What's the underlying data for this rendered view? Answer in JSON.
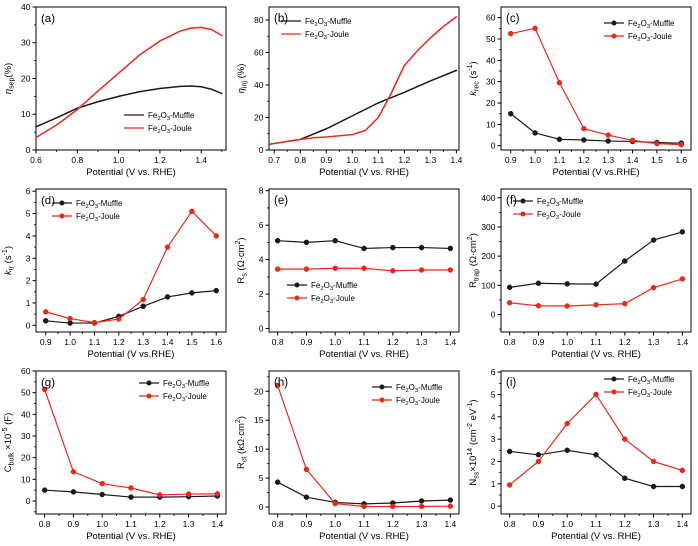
{
  "figure": {
    "background": "#ffffff",
    "rows": 3,
    "cols": 3
  },
  "colors": {
    "muffle": "#1a1a1a",
    "joule": "#e8291c",
    "axis": "#000000"
  },
  "rich_names": {
    "Fe2O3-Muffle": [
      [
        "Fe",
        ""
      ],
      [
        "2",
        "sub"
      ],
      [
        "O",
        ""
      ],
      [
        "3",
        "sub"
      ],
      [
        "-Muffle",
        ""
      ]
    ],
    "Fe2O3-Joule": [
      [
        "Fe",
        ""
      ],
      [
        "2",
        "sub"
      ],
      [
        "O",
        ""
      ],
      [
        "3",
        "sub"
      ],
      [
        "-Joule",
        ""
      ]
    ]
  },
  "chart_data": [
    {
      "panel": "(a)",
      "type": "line",
      "xlabel": "Potential (V vs. RHE)",
      "ylabel": "n_sep(%)",
      "ylabel_segments": [
        [
          "η",
          "i"
        ],
        [
          "sep",
          "sub"
        ],
        [
          "(%)",
          ""
        ]
      ],
      "xlim": [
        0.6,
        1.52
      ],
      "ylim": [
        0,
        40
      ],
      "xticks": [
        0.6,
        0.8,
        1.0,
        1.2,
        1.4
      ],
      "xtick_labels": [
        "0.6",
        "0.8",
        "1.0",
        "1.2",
        "1.4"
      ],
      "yticks": [
        0,
        10,
        20,
        30,
        40
      ],
      "ytick_labels": [
        "0",
        "10",
        "20",
        "30",
        "40"
      ],
      "legend": {
        "pos": "bottom-right",
        "xy": [
          88,
          104
        ],
        "marker": false
      },
      "series": [
        {
          "name": "Fe2O3-Muffle",
          "color_key": "muffle",
          "marker": false,
          "x": [
            0.6,
            0.7,
            0.8,
            0.9,
            1.0,
            1.1,
            1.2,
            1.3,
            1.35,
            1.4,
            1.45,
            1.5
          ],
          "y": [
            6.5,
            9.0,
            11.7,
            13.5,
            15.0,
            16.3,
            17.2,
            17.8,
            17.9,
            17.7,
            17.0,
            15.8
          ]
        },
        {
          "name": "Fe2O3-Joule",
          "color_key": "joule",
          "marker": false,
          "x": [
            0.6,
            0.7,
            0.8,
            0.9,
            1.0,
            1.1,
            1.2,
            1.3,
            1.35,
            1.4,
            1.45,
            1.5
          ],
          "y": [
            3.5,
            7.0,
            11.3,
            16.5,
            21.5,
            26.5,
            30.5,
            33.3,
            34.1,
            34.3,
            33.7,
            32.0
          ]
        }
      ]
    },
    {
      "panel": "(b)",
      "type": "line",
      "xlabel": "Potential (V vs. RHE)",
      "ylabel": "n_inj (%)",
      "ylabel_segments": [
        [
          "η",
          "i"
        ],
        [
          "inj",
          "sub"
        ],
        [
          " (%)",
          ""
        ]
      ],
      "xlim": [
        0.68,
        1.41
      ],
      "ylim": [
        0,
        88
      ],
      "xticks": [
        0.7,
        0.8,
        0.9,
        1.0,
        1.1,
        1.2,
        1.3,
        1.4
      ],
      "xtick_labels": [
        "0.7",
        "0.8",
        "0.9",
        "1.0",
        "1.1",
        "1.2",
        "1.3",
        "1.4"
      ],
      "yticks": [
        0,
        20,
        40,
        60,
        80
      ],
      "ytick_labels": [
        "0",
        "20",
        "40",
        "60",
        "80"
      ],
      "legend": {
        "pos": "top-left",
        "xy": [
          12,
          10
        ],
        "marker": false
      },
      "series": [
        {
          "name": "Fe2O3-Muffle",
          "color_key": "muffle",
          "marker": false,
          "x": [
            0.68,
            0.8,
            0.9,
            1.0,
            1.1,
            1.2,
            1.3,
            1.4
          ],
          "y": [
            3.5,
            6.5,
            13,
            21,
            29,
            35.5,
            42.5,
            49
          ]
        },
        {
          "name": "Fe2O3-Joule",
          "color_key": "joule",
          "marker": false,
          "x": [
            0.68,
            0.8,
            0.85,
            0.9,
            1.0,
            1.05,
            1.1,
            1.15,
            1.2,
            1.25,
            1.3,
            1.35,
            1.4
          ],
          "y": [
            3.5,
            6.5,
            7.5,
            8,
            9.5,
            12,
            20,
            35,
            52,
            61,
            69,
            76,
            82
          ]
        }
      ]
    },
    {
      "panel": "(c)",
      "type": "scatter-line",
      "xlabel": "Potential (V vs.RHE)",
      "ylabel": "k_rec (s-1)",
      "ylabel_segments": [
        [
          "k",
          "i"
        ],
        [
          "rec",
          "sub"
        ],
        [
          " (s",
          ""
        ],
        [
          "-1",
          "sup"
        ],
        [
          ")",
          ""
        ]
      ],
      "xlim": [
        0.86,
        1.64
      ],
      "ylim": [
        -2,
        65
      ],
      "xticks": [
        0.9,
        1.0,
        1.1,
        1.2,
        1.3,
        1.4,
        1.5,
        1.6
      ],
      "xtick_labels": [
        "0.9",
        "1.0",
        "1.1",
        "1.2",
        "1.3",
        "1.4",
        "1.5",
        "1.6"
      ],
      "yticks": [
        0,
        10,
        20,
        30,
        40,
        50,
        60
      ],
      "ytick_labels": [
        "0",
        "10",
        "20",
        "30",
        "40",
        "50",
        "60"
      ],
      "legend": {
        "pos": "top-right",
        "xy": [
          103,
          12
        ],
        "marker": true
      },
      "series": [
        {
          "name": "Fe2O3-Muffle",
          "color_key": "muffle",
          "marker": true,
          "x": [
            0.9,
            1.0,
            1.1,
            1.2,
            1.3,
            1.4,
            1.5,
            1.6
          ],
          "y": [
            15,
            6,
            3,
            2.7,
            2.2,
            2.0,
            1.5,
            1.2
          ]
        },
        {
          "name": "Fe2O3-Joule",
          "color_key": "joule",
          "marker": true,
          "x": [
            0.9,
            1.0,
            1.1,
            1.2,
            1.3,
            1.4,
            1.5,
            1.6
          ],
          "y": [
            52.5,
            55,
            29.5,
            8,
            5,
            2.5,
            1.0,
            0.5
          ]
        }
      ]
    },
    {
      "panel": "(d)",
      "type": "scatter-line",
      "xlabel": "Potential (V vs.RHE)",
      "ylabel": "k_tr (s-1)",
      "ylabel_segments": [
        [
          "k",
          "i"
        ],
        [
          "tr",
          "sub"
        ],
        [
          " (s",
          ""
        ],
        [
          "-1",
          "sup"
        ],
        [
          ")",
          ""
        ]
      ],
      "xlim": [
        0.86,
        1.64
      ],
      "ylim": [
        -0.3,
        6.1
      ],
      "xticks": [
        0.9,
        1.0,
        1.1,
        1.2,
        1.3,
        1.4,
        1.5,
        1.6
      ],
      "xtick_labels": [
        "0.9",
        "1.0",
        "1.1",
        "1.2",
        "1.3",
        "1.4",
        "1.5",
        "1.6"
      ],
      "yticks": [
        0,
        1,
        2,
        3,
        4,
        5,
        6
      ],
      "ytick_labels": [
        "0",
        "1",
        "2",
        "3",
        "4",
        "5",
        "6"
      ],
      "legend": {
        "pos": "top-left",
        "xy": [
          16,
          10
        ],
        "marker": true
      },
      "series": [
        {
          "name": "Fe2O3-Muffle",
          "color_key": "muffle",
          "marker": true,
          "x": [
            0.9,
            1.0,
            1.1,
            1.2,
            1.3,
            1.4,
            1.5,
            1.6
          ],
          "y": [
            0.2,
            0.1,
            0.1,
            0.4,
            0.85,
            1.27,
            1.45,
            1.55
          ]
        },
        {
          "name": "Fe2O3-Joule",
          "color_key": "joule",
          "marker": true,
          "x": [
            0.9,
            1.0,
            1.1,
            1.2,
            1.3,
            1.4,
            1.5,
            1.6
          ],
          "y": [
            0.6,
            0.3,
            0.12,
            0.28,
            1.15,
            3.5,
            5.1,
            4.0
          ]
        }
      ]
    },
    {
      "panel": "(e)",
      "type": "scatter-line",
      "xlabel": "Potential (V vs. RHE)",
      "ylabel": "Rs (Ohm cm2)",
      "ylabel_segments": [
        [
          "R",
          ""
        ],
        [
          "s",
          "sub"
        ],
        [
          " (Ω·cm",
          ""
        ],
        [
          "2",
          "sup"
        ],
        [
          ")",
          ""
        ]
      ],
      "xlim": [
        0.77,
        1.43
      ],
      "ylim": [
        -0.2,
        8.1
      ],
      "xticks": [
        0.8,
        0.9,
        1.0,
        1.1,
        1.2,
        1.3,
        1.4
      ],
      "xtick_labels": [
        "0.8",
        "0.9",
        "1.0",
        "1.1",
        "1.2",
        "1.3",
        "1.4"
      ],
      "yticks": [
        0,
        2,
        4,
        6,
        8
      ],
      "ytick_labels": [
        "0",
        "2",
        "4",
        "6",
        "8"
      ],
      "legend": {
        "pos": "bottom-left",
        "xy": [
          18,
          92
        ],
        "marker": true
      },
      "series": [
        {
          "name": "Fe2O3-Muffle",
          "color_key": "muffle",
          "marker": true,
          "x": [
            0.8,
            0.9,
            1.0,
            1.1,
            1.2,
            1.3,
            1.4
          ],
          "y": [
            5.1,
            5.0,
            5.1,
            4.65,
            4.7,
            4.7,
            4.65
          ]
        },
        {
          "name": "Fe2O3-Joule",
          "color_key": "joule",
          "marker": true,
          "x": [
            0.8,
            0.9,
            1.0,
            1.1,
            1.2,
            1.3,
            1.4
          ],
          "y": [
            3.45,
            3.45,
            3.5,
            3.5,
            3.35,
            3.4,
            3.4
          ]
        }
      ]
    },
    {
      "panel": "(f)",
      "type": "scatter-line",
      "xlabel": "Potential (V vs. RHE)",
      "ylabel": "Rtrap (Ohm cm2)",
      "ylabel_segments": [
        [
          "R",
          ""
        ],
        [
          "trap",
          "sub"
        ],
        [
          " (Ω·cm",
          ""
        ],
        [
          "2",
          "sup"
        ],
        [
          ")",
          ""
        ]
      ],
      "xlim": [
        0.77,
        1.43
      ],
      "ylim": [
        -60,
        430
      ],
      "xticks": [
        0.8,
        0.9,
        1.0,
        1.1,
        1.2,
        1.3,
        1.4
      ],
      "xtick_labels": [
        "0.8",
        "0.9",
        "1.0",
        "1.1",
        "1.2",
        "1.3",
        "1.4"
      ],
      "yticks": [
        0,
        100,
        200,
        300,
        400
      ],
      "ytick_labels": [
        "0",
        "100",
        "200",
        "300",
        "400"
      ],
      "legend": {
        "pos": "top-left",
        "xy": [
          12,
          8
        ],
        "marker": true
      },
      "series": [
        {
          "name": "Fe2O3-Muffle",
          "color_key": "muffle",
          "marker": true,
          "x": [
            0.8,
            0.9,
            1.0,
            1.1,
            1.2,
            1.3,
            1.4
          ],
          "y": [
            93,
            107,
            105,
            104,
            183,
            255,
            283
          ]
        },
        {
          "name": "Fe2O3-Joule",
          "color_key": "joule",
          "marker": true,
          "x": [
            0.8,
            0.9,
            1.0,
            1.1,
            1.2,
            1.3,
            1.4
          ],
          "y": [
            40,
            30,
            29,
            33,
            37,
            92,
            122
          ]
        }
      ]
    },
    {
      "panel": "(g)",
      "type": "scatter-line",
      "xlabel": "Potential (V vs. RHE)",
      "ylabel": "Cbulk x10-5 (F)",
      "ylabel_segments": [
        [
          "C",
          ""
        ],
        [
          "bulk",
          "sub"
        ],
        [
          " ×10",
          ""
        ],
        [
          "-5",
          "sup"
        ],
        [
          " (F)",
          ""
        ]
      ],
      "xlim": [
        0.77,
        1.43
      ],
      "ylim": [
        -6,
        60
      ],
      "xticks": [
        0.8,
        0.9,
        1.0,
        1.1,
        1.2,
        1.3,
        1.4
      ],
      "xtick_labels": [
        "0.8",
        "0.9",
        "1.0",
        "1.1",
        "1.2",
        "1.3",
        "1.4"
      ],
      "yticks": [
        0,
        10,
        20,
        30,
        40,
        50,
        60
      ],
      "ytick_labels": [
        "0",
        "10",
        "20",
        "30",
        "40",
        "50",
        "60"
      ],
      "legend": {
        "pos": "top-right",
        "xy": [
          103,
          8
        ],
        "marker": true
      },
      "series": [
        {
          "name": "Fe2O3-Muffle",
          "color_key": "muffle",
          "marker": true,
          "x": [
            0.8,
            0.9,
            1.0,
            1.1,
            1.2,
            1.3,
            1.4
          ],
          "y": [
            5.0,
            4.2,
            3.0,
            1.8,
            1.8,
            2.0,
            2.3
          ]
        },
        {
          "name": "Fe2O3-Joule",
          "color_key": "joule",
          "marker": true,
          "x": [
            0.8,
            0.9,
            1.0,
            1.1,
            1.2,
            1.3,
            1.4
          ],
          "y": [
            51.5,
            13.5,
            8.0,
            6.0,
            2.8,
            3.2,
            3.3
          ]
        }
      ]
    },
    {
      "panel": "(h)",
      "type": "scatter-line",
      "xlabel": "Potential (V vs. RHE)",
      "ylabel": "Rct (kOhm cm2)",
      "ylabel_segments": [
        [
          "R",
          ""
        ],
        [
          "ct",
          "sub"
        ],
        [
          " (kΩ·cm",
          ""
        ],
        [
          "2",
          "sup"
        ],
        [
          ")",
          ""
        ]
      ],
      "xlim": [
        0.77,
        1.43
      ],
      "ylim": [
        -1.2,
        23.5
      ],
      "xticks": [
        0.8,
        0.9,
        1.0,
        1.1,
        1.2,
        1.3,
        1.4
      ],
      "xtick_labels": [
        "0.8",
        "0.9",
        "1.0",
        "1.1",
        "1.2",
        "1.3",
        "1.4"
      ],
      "yticks": [
        0,
        5,
        10,
        15,
        20
      ],
      "ytick_labels": [
        "0",
        "5",
        "10",
        "15",
        "20"
      ],
      "legend": {
        "pos": "top-right",
        "xy": [
          103,
          12
        ],
        "marker": true
      },
      "series": [
        {
          "name": "Fe2O3-Muffle",
          "color_key": "muffle",
          "marker": true,
          "x": [
            0.8,
            0.9,
            1.0,
            1.1,
            1.2,
            1.3,
            1.4
          ],
          "y": [
            4.3,
            1.7,
            0.8,
            0.55,
            0.7,
            1.05,
            1.2
          ]
        },
        {
          "name": "Fe2O3-Joule",
          "color_key": "joule",
          "marker": true,
          "x": [
            0.8,
            0.9,
            1.0,
            1.1,
            1.2,
            1.3,
            1.4
          ],
          "y": [
            21,
            6.5,
            0.6,
            0.1,
            0.1,
            0.1,
            0.15
          ]
        }
      ]
    },
    {
      "panel": "(i)",
      "type": "scatter-line",
      "xlabel": "Potential (V vs. RHE)",
      "ylabel": "Nss x10 14 (cm-2 eV-1)",
      "ylabel_segments": [
        [
          "N",
          ""
        ],
        [
          "ss",
          "sub"
        ],
        [
          "×10",
          ""
        ],
        [
          "14",
          "sup"
        ],
        [
          " (cm",
          ""
        ],
        [
          "-2",
          "sup"
        ],
        [
          " eV",
          ""
        ],
        [
          "-1",
          "sup"
        ],
        [
          ")",
          ""
        ]
      ],
      "xlim": [
        0.77,
        1.43
      ],
      "ylim": [
        -0.35,
        6.05
      ],
      "xticks": [
        0.8,
        0.9,
        1.0,
        1.1,
        1.2,
        1.3,
        1.4
      ],
      "xtick_labels": [
        "0.8",
        "0.9",
        "1.0",
        "1.1",
        "1.2",
        "1.3",
        "1.4"
      ],
      "yticks": [
        0,
        1,
        2,
        3,
        4,
        5,
        6
      ],
      "ytick_labels": [
        "0",
        "1",
        "2",
        "3",
        "4",
        "5",
        "6"
      ],
      "legend": {
        "pos": "top-right",
        "xy": [
          103,
          4
        ],
        "marker": true
      },
      "series": [
        {
          "name": "Fe2O3-Muffle",
          "color_key": "muffle",
          "marker": true,
          "x": [
            0.8,
            0.9,
            1.0,
            1.1,
            1.2,
            1.3,
            1.4
          ],
          "y": [
            2.45,
            2.3,
            2.5,
            2.3,
            1.25,
            0.88,
            0.88
          ]
        },
        {
          "name": "Fe2O3-Joule",
          "color_key": "joule",
          "marker": true,
          "x": [
            0.8,
            0.9,
            1.0,
            1.1,
            1.2,
            1.3,
            1.4
          ],
          "y": [
            0.95,
            2.0,
            3.7,
            5.0,
            3.0,
            2.0,
            1.6
          ]
        }
      ]
    }
  ]
}
